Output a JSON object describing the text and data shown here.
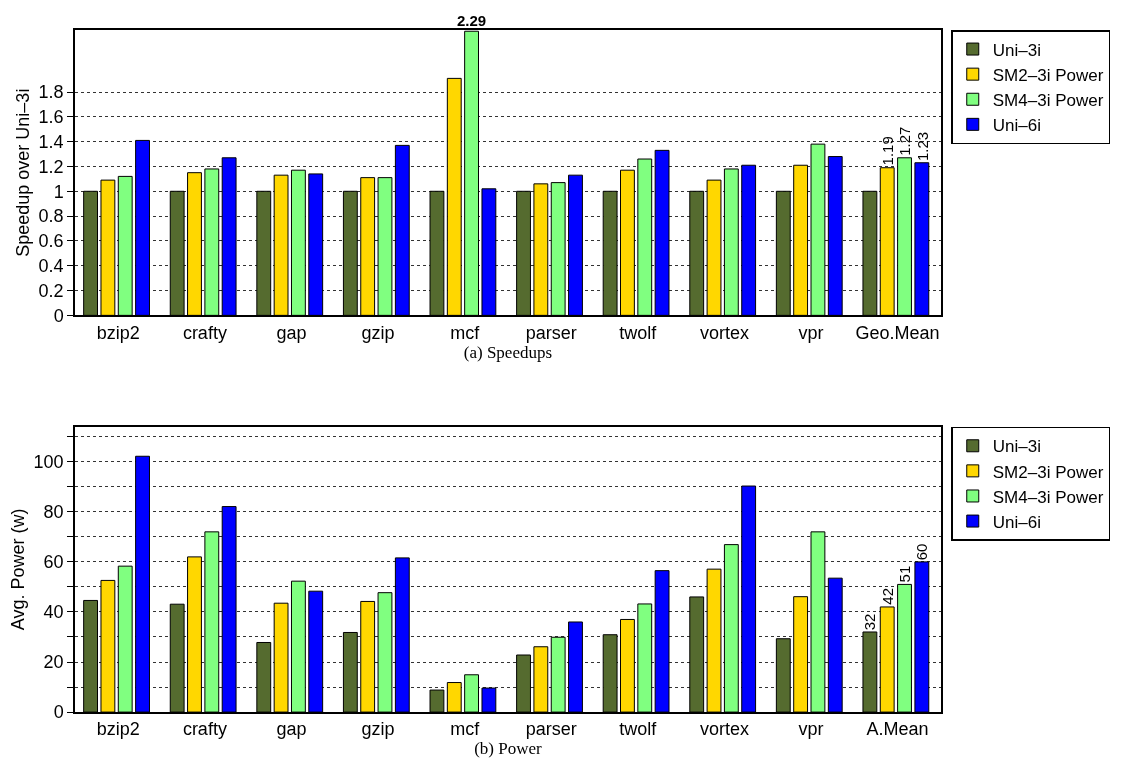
{
  "chart_data": [
    {
      "type": "bar",
      "xlabel": "(a) Speedups",
      "ylabel": "Speedup over Uni–3i",
      "categories": [
        "bzip2",
        "crafty",
        "gap",
        "gzip",
        "mcf",
        "parser",
        "twolf",
        "vortex",
        "vpr",
        "Geo.Mean"
      ],
      "series": [
        {
          "name": "Uni–3i",
          "color": "#556b2f",
          "values": [
            1,
            1,
            1,
            1,
            1,
            1,
            1,
            1,
            1,
            1
          ]
        },
        {
          "name": "SM2–3i Power",
          "color": "#ffd700",
          "values": [
            1.09,
            1.15,
            1.13,
            1.11,
            1.91,
            1.06,
            1.17,
            1.09,
            1.21,
            1.19
          ],
          "value_labels": [
            null,
            null,
            null,
            null,
            null,
            null,
            null,
            null,
            null,
            "1.19"
          ]
        },
        {
          "name": "SM4–3i Power",
          "color": "#80ff80",
          "values": [
            1.12,
            1.18,
            1.17,
            1.11,
            2.29,
            1.07,
            1.26,
            1.18,
            1.38,
            1.27
          ],
          "value_labels": [
            null,
            null,
            null,
            null,
            "2.29",
            null,
            null,
            null,
            null,
            "1.27"
          ]
        },
        {
          "name": "Uni–6i",
          "color": "#0000ff",
          "values": [
            1.41,
            1.27,
            1.14,
            1.37,
            1.02,
            1.13,
            1.33,
            1.21,
            1.28,
            1.23
          ],
          "value_labels": [
            null,
            null,
            null,
            null,
            null,
            null,
            null,
            null,
            null,
            "1.23"
          ]
        }
      ],
      "ylim": [
        0,
        2.3
      ],
      "yticks": [
        0,
        0.2,
        0.4,
        0.6,
        0.8,
        1,
        1.2,
        1.4,
        1.6,
        1.8
      ],
      "grid": "y",
      "legend": "top right"
    },
    {
      "type": "bar",
      "xlabel": "(b) Power",
      "ylabel": "Avg. Power (w)",
      "categories": [
        "bzip2",
        "crafty",
        "gap",
        "gzip",
        "mcf",
        "parser",
        "twolf",
        "vortex",
        "vpr",
        "A.Mean"
      ],
      "series": [
        {
          "name": "Uni–3i",
          "color": "#556b2f",
          "values": [
            44.6,
            43.1,
            27.8,
            31.8,
            8.8,
            22.8,
            30.9,
            46.0,
            29.3,
            32
          ],
          "value_labels": [
            null,
            null,
            null,
            null,
            null,
            null,
            null,
            null,
            null,
            "32"
          ]
        },
        {
          "name": "SM2–3i Power",
          "color": "#ffd700",
          "values": [
            52.6,
            62.0,
            43.5,
            44.2,
            11.8,
            26.1,
            37.0,
            57.1,
            46.1,
            42
          ],
          "value_labels": [
            null,
            null,
            null,
            null,
            null,
            null,
            null,
            null,
            null,
            "42"
          ]
        },
        {
          "name": "SM4–3i Power",
          "color": "#80ff80",
          "values": [
            58.3,
            72.0,
            52.3,
            47.7,
            14.9,
            29.9,
            43.2,
            66.9,
            72.0,
            51
          ],
          "value_labels": [
            null,
            null,
            null,
            null,
            null,
            null,
            null,
            null,
            null,
            "51"
          ]
        },
        {
          "name": "Uni–6i",
          "color": "#0000ff",
          "values": [
            102.2,
            82.1,
            48.3,
            61.6,
            9.6,
            36.0,
            56.5,
            90.3,
            53.5,
            60
          ],
          "value_labels": [
            null,
            null,
            null,
            null,
            null,
            null,
            null,
            null,
            null,
            "60"
          ]
        }
      ],
      "ylim": [
        0,
        114
      ],
      "yticks": [
        0,
        {
          "value": 10,
          "label": null
        },
        20,
        {
          "value": 30,
          "label": null
        },
        40,
        {
          "value": 50,
          "label": null
        },
        60,
        {
          "value": 70,
          "label": null
        },
        80,
        {
          "value": 90,
          "label": null
        },
        100,
        {
          "value": 110,
          "label": null
        }
      ],
      "grid": "y",
      "legend": "top right"
    }
  ]
}
